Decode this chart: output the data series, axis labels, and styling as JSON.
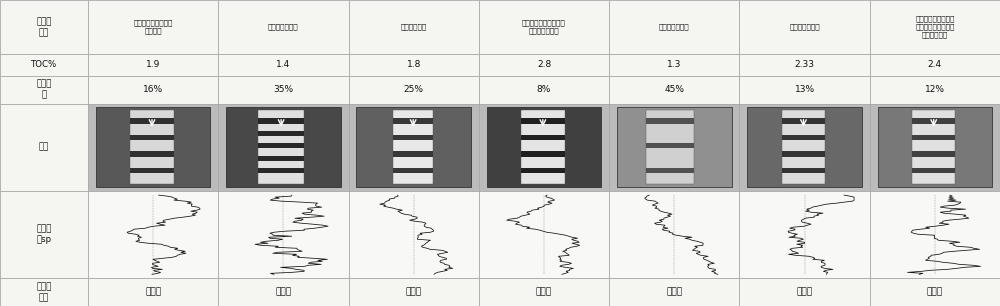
{
  "row_labels": [
    "相共生\n关系",
    "TOC%",
    "砂质含\n量",
    "照片",
    "测井曲\n线sp",
    "微层系\n结构"
  ],
  "col_headers": [
    "常与障壁岛组成障壁\n潟湖体系",
    "常与混合坪共存",
    "与天然提共生",
    "是形成煤的重要阶段，\n与夹口屑等共生",
    "上部为三角洲相",
    "与三角洲泥共生",
    "上部为三角洲前缘，\n其下部为正常浅海，\n甚至到半深海"
  ],
  "toc_values": [
    "1.9",
    "1.4",
    "1.8",
    "2.8",
    "1.3",
    "2.33",
    "2.4"
  ],
  "sand_values": [
    "16%",
    "35%",
    "25%",
    "8%",
    "45%",
    "13%",
    "12%"
  ],
  "micro_structure": [
    "透镜状",
    "透镜状",
    "互层状",
    "透镜状",
    "压扁状",
    "透镜状",
    "透镜状"
  ],
  "cell_bg": "#f5f5f2",
  "border_color": "#aaaaaa",
  "text_color": "#111111",
  "photo_row_bg": "#c8c8c8"
}
